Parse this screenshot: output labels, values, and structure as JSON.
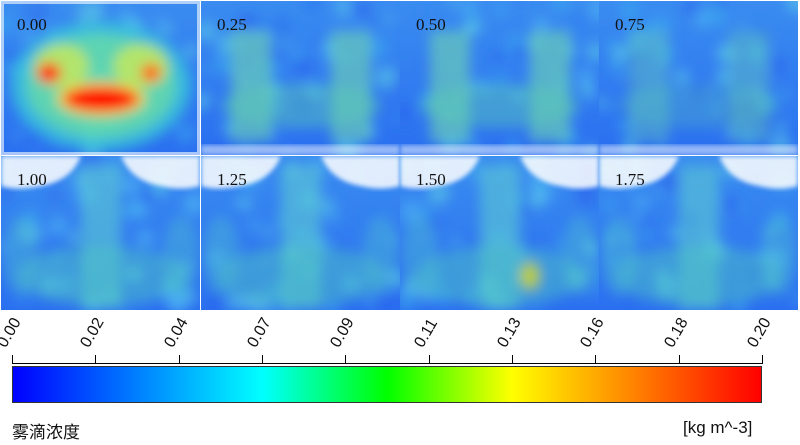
{
  "panels": [
    {
      "label": "0.00",
      "style": "peak"
    },
    {
      "label": "0.25",
      "style": "diffuse"
    },
    {
      "label": "0.50",
      "style": "diffuse"
    },
    {
      "label": "0.75",
      "style": "diffuse-low"
    },
    {
      "label": "1.00",
      "style": "plume"
    },
    {
      "label": "1.25",
      "style": "plume"
    },
    {
      "label": "1.50",
      "style": "plume-spot"
    },
    {
      "label": "1.75",
      "style": "plume"
    }
  ],
  "colorbar": {
    "ticks": [
      "0.00",
      "0.02",
      "0.04",
      "0.07",
      "0.09",
      "0.11",
      "0.13",
      "0.16",
      "0.18",
      "0.20"
    ],
    "title": "雾滴浓度",
    "unit": "[kg m^-3]",
    "colors": [
      "#0000ff",
      "#0080ff",
      "#00ffff",
      "#00ff00",
      "#ffff00",
      "#ff8000",
      "#ff0000"
    ]
  }
}
